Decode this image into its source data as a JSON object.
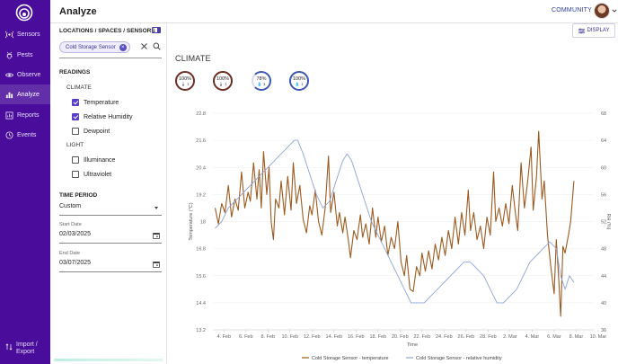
{
  "app": {
    "page_title": "Analyze",
    "community_label": "COMMUNITY"
  },
  "colors": {
    "nav_bg": "#4a0d9b",
    "accent": "#3a3393",
    "temperature": "#9c5a1f",
    "humidity": "#8fa3da"
  },
  "nav": {
    "items": [
      {
        "label": "Sensors",
        "icon": "signal-icon"
      },
      {
        "label": "Pests",
        "icon": "bug-icon"
      },
      {
        "label": "Observe",
        "icon": "eye-icon"
      },
      {
        "label": "Analyze",
        "icon": "bar-chart-icon"
      },
      {
        "label": "Reports",
        "icon": "report-icon"
      },
      {
        "label": "Events",
        "icon": "clock-icon"
      }
    ],
    "import_export_line1": "Import /",
    "import_export_line2": "Export"
  },
  "filters": {
    "header": "LOCATIONS / SPACES / SENSORS",
    "chip_label": "Cold Storage Sensor",
    "readings_title": "READINGS",
    "climate_group": "CLIMATE",
    "climate_options": [
      {
        "label": "Temperature",
        "checked": true
      },
      {
        "label": "Relative Humidity",
        "checked": true
      },
      {
        "label": "Dewpoint",
        "checked": false
      }
    ],
    "light_group": "LIGHT",
    "light_options": [
      {
        "label": "Illuminance",
        "checked": false
      },
      {
        "label": "Ultraviolet",
        "checked": false
      }
    ],
    "time_period_title": "TIME PERIOD",
    "time_period_value": "Custom",
    "start_date_label": "Start Date",
    "start_date_value": "02/03/2025",
    "end_date_label": "End Date",
    "end_date_value": "03/07/2025"
  },
  "main": {
    "display_button": "DISPLAY",
    "section_title": "CLIMATE",
    "gauges": [
      {
        "value": "100%",
        "sub": "🌡 1",
        "style": "brown"
      },
      {
        "value": "100%",
        "sub": "🌡 1",
        "style": "brown"
      },
      {
        "value": "78%",
        "sub": "💧 1",
        "style": "partial"
      },
      {
        "value": "100%",
        "sub": "💧 1",
        "style": "blue"
      }
    ]
  },
  "chart_data": {
    "type": "line",
    "title": "",
    "xlabel": "Time",
    "ylabel_left": "Temperature (°C)",
    "ylabel_right": "RH (%)",
    "y_left_ticks": [
      13.2,
      14.4,
      15.6,
      16.8,
      18,
      19.2,
      20.4,
      21.6,
      22.8
    ],
    "y_left_range": [
      13.2,
      22.8
    ],
    "y_right_ticks": [
      36,
      40,
      44,
      48,
      52,
      56,
      60,
      64,
      68
    ],
    "y_right_range": [
      36,
      68
    ],
    "x_range_days": [
      3,
      37.6
    ],
    "x_ticks": [
      {
        "day": 4,
        "label": "4. Feb"
      },
      {
        "day": 6,
        "label": "6. Feb"
      },
      {
        "day": 8,
        "label": "8. Feb"
      },
      {
        "day": 10,
        "label": "10. Feb"
      },
      {
        "day": 12,
        "label": "12. Feb"
      },
      {
        "day": 14,
        "label": "14. Feb"
      },
      {
        "day": 16,
        "label": "16. Feb"
      },
      {
        "day": 18,
        "label": "18. Feb"
      },
      {
        "day": 20,
        "label": "20. Feb"
      },
      {
        "day": 22,
        "label": "22. Feb"
      },
      {
        "day": 24,
        "label": "24. Feb"
      },
      {
        "day": 26,
        "label": "26. Feb"
      },
      {
        "day": 28,
        "label": "28. Feb"
      },
      {
        "day": 30,
        "label": "2. Mar"
      },
      {
        "day": 32,
        "label": "4. Mar"
      },
      {
        "day": 34,
        "label": "6. Mar"
      },
      {
        "day": 36,
        "label": "8. Mar"
      },
      {
        "day": 38,
        "label": "10. Mar"
      }
    ],
    "legend": [
      "Cold Storage Sensor - temperature",
      "Cold Storage Sensor - relative humidity"
    ],
    "series": [
      {
        "name": "Cold Storage Sensor - temperature",
        "axis": "left",
        "points": [
          [
            3.2,
            18.6
          ],
          [
            3.5,
            17.9
          ],
          [
            3.8,
            18.8
          ],
          [
            4.1,
            18.4
          ],
          [
            4.4,
            19.6
          ],
          [
            4.7,
            18.2
          ],
          [
            5.0,
            19.0
          ],
          [
            5.3,
            18.5
          ],
          [
            5.6,
            20.2
          ],
          [
            5.9,
            18.6
          ],
          [
            6.2,
            19.3
          ],
          [
            6.4,
            18.9
          ],
          [
            6.7,
            20.6
          ],
          [
            7.0,
            19.0
          ],
          [
            7.2,
            20.3
          ],
          [
            7.4,
            18.6
          ],
          [
            7.6,
            21.1
          ],
          [
            7.9,
            19.2
          ],
          [
            8.1,
            20.4
          ],
          [
            8.3,
            18.0
          ],
          [
            8.5,
            17.2
          ],
          [
            8.7,
            19.0
          ],
          [
            9.0,
            18.6
          ],
          [
            9.2,
            19.8
          ],
          [
            9.5,
            18.3
          ],
          [
            9.8,
            20.0
          ],
          [
            10.1,
            18.5
          ],
          [
            10.3,
            20.6
          ],
          [
            10.6,
            18.8
          ],
          [
            10.9,
            19.6
          ],
          [
            11.2,
            18.1
          ],
          [
            11.5,
            17.5
          ],
          [
            11.8,
            18.7
          ],
          [
            12.0,
            18.3
          ],
          [
            12.3,
            19.4
          ],
          [
            12.6,
            18.0
          ],
          [
            12.9,
            17.4
          ],
          [
            13.2,
            18.6
          ],
          [
            13.5,
            20.9
          ],
          [
            13.7,
            18.4
          ],
          [
            14.0,
            19.3
          ],
          [
            14.3,
            17.8
          ],
          [
            14.5,
            18.4
          ],
          [
            14.8,
            17.5
          ],
          [
            15.0,
            18.2
          ],
          [
            15.3,
            17.2
          ],
          [
            15.5,
            16.4
          ],
          [
            15.8,
            17.6
          ],
          [
            16.1,
            17.2
          ],
          [
            16.4,
            18.3
          ],
          [
            16.6,
            17.3
          ],
          [
            16.9,
            17.9
          ],
          [
            17.2,
            17.0
          ],
          [
            17.5,
            18.6
          ],
          [
            17.8,
            17.3
          ],
          [
            18.0,
            18.2
          ],
          [
            18.3,
            17.1
          ],
          [
            18.6,
            17.8
          ],
          [
            18.9,
            16.5
          ],
          [
            19.2,
            17.3
          ],
          [
            19.5,
            16.8
          ],
          [
            19.8,
            18.0
          ],
          [
            20.1,
            16.2
          ],
          [
            20.4,
            15.6
          ],
          [
            20.6,
            16.5
          ],
          [
            20.9,
            15.0
          ],
          [
            21.2,
            14.9
          ],
          [
            21.5,
            16.0
          ],
          [
            21.8,
            15.6
          ],
          [
            22.0,
            16.6
          ],
          [
            22.3,
            15.8
          ],
          [
            22.6,
            16.7
          ],
          [
            22.9,
            15.9
          ],
          [
            23.2,
            17.0
          ],
          [
            23.5,
            16.3
          ],
          [
            23.8,
            17.3
          ],
          [
            24.1,
            16.5
          ],
          [
            24.4,
            17.6
          ],
          [
            24.7,
            16.8
          ],
          [
            25.0,
            18.2
          ],
          [
            25.3,
            17.0
          ],
          [
            25.6,
            18.4
          ],
          [
            25.9,
            17.4
          ],
          [
            26.2,
            19.4
          ],
          [
            26.4,
            17.6
          ],
          [
            26.7,
            18.4
          ],
          [
            27.0,
            17.2
          ],
          [
            27.3,
            17.8
          ],
          [
            27.6,
            16.8
          ],
          [
            27.9,
            18.2
          ],
          [
            28.2,
            17.4
          ],
          [
            28.5,
            20.2
          ],
          [
            28.7,
            18.0
          ],
          [
            29.0,
            18.6
          ],
          [
            29.3,
            17.8
          ],
          [
            29.6,
            18.8
          ],
          [
            29.9,
            17.9
          ],
          [
            30.2,
            19.6
          ],
          [
            30.5,
            18.3
          ],
          [
            30.7,
            17.6
          ],
          [
            31.0,
            20.6
          ],
          [
            31.3,
            18.6
          ],
          [
            31.6,
            19.8
          ],
          [
            31.9,
            21.3
          ],
          [
            32.1,
            18.5
          ],
          [
            32.4,
            20.0
          ],
          [
            32.6,
            22.0
          ],
          [
            32.9,
            19.0
          ],
          [
            33.1,
            19.8
          ],
          [
            33.4,
            17.4
          ],
          [
            33.7,
            16.0
          ],
          [
            34.0,
            14.8
          ],
          [
            34.2,
            17.2
          ],
          [
            34.4,
            15.6
          ],
          [
            34.6,
            13.8
          ],
          [
            34.8,
            16.9
          ],
          [
            35.0,
            16.6
          ],
          [
            35.3,
            17.4
          ],
          [
            35.5,
            18.0
          ],
          [
            35.8,
            19.8
          ]
        ]
      },
      {
        "name": "Cold Storage Sensor - relative humidity",
        "axis": "right",
        "points": [
          [
            3.2,
            51
          ],
          [
            3.8,
            52
          ],
          [
            4.4,
            54
          ],
          [
            5.0,
            55
          ],
          [
            5.6,
            56
          ],
          [
            6.2,
            57
          ],
          [
            6.8,
            58
          ],
          [
            7.4,
            59
          ],
          [
            8.0,
            60
          ],
          [
            8.6,
            61
          ],
          [
            9.2,
            62
          ],
          [
            9.8,
            63
          ],
          [
            10.4,
            64
          ],
          [
            10.7,
            64
          ],
          [
            11.2,
            62
          ],
          [
            11.8,
            59
          ],
          [
            12.4,
            56
          ],
          [
            13.0,
            54
          ],
          [
            13.6,
            55
          ],
          [
            14.2,
            58
          ],
          [
            14.8,
            61
          ],
          [
            15.2,
            62
          ],
          [
            15.6,
            61
          ],
          [
            16.2,
            58
          ],
          [
            16.8,
            55
          ],
          [
            17.4,
            52
          ],
          [
            18.0,
            50
          ],
          [
            18.6,
            48
          ],
          [
            19.2,
            46
          ],
          [
            19.8,
            44
          ],
          [
            20.4,
            42
          ],
          [
            21.0,
            40
          ],
          [
            21.6,
            40
          ],
          [
            22.2,
            40
          ],
          [
            22.8,
            41
          ],
          [
            23.4,
            42
          ],
          [
            24.0,
            43
          ],
          [
            24.6,
            44
          ],
          [
            25.2,
            45
          ],
          [
            25.8,
            46
          ],
          [
            26.4,
            46
          ],
          [
            27.0,
            45
          ],
          [
            27.6,
            44
          ],
          [
            28.2,
            42
          ],
          [
            28.8,
            40
          ],
          [
            29.4,
            40
          ],
          [
            30.0,
            41
          ],
          [
            30.6,
            42
          ],
          [
            31.2,
            44
          ],
          [
            31.8,
            46
          ],
          [
            32.4,
            47
          ],
          [
            33.0,
            48
          ],
          [
            33.6,
            49
          ],
          [
            34.2,
            48
          ],
          [
            34.6,
            44
          ],
          [
            35.0,
            42
          ],
          [
            35.4,
            44
          ],
          [
            35.8,
            43
          ]
        ]
      }
    ]
  }
}
